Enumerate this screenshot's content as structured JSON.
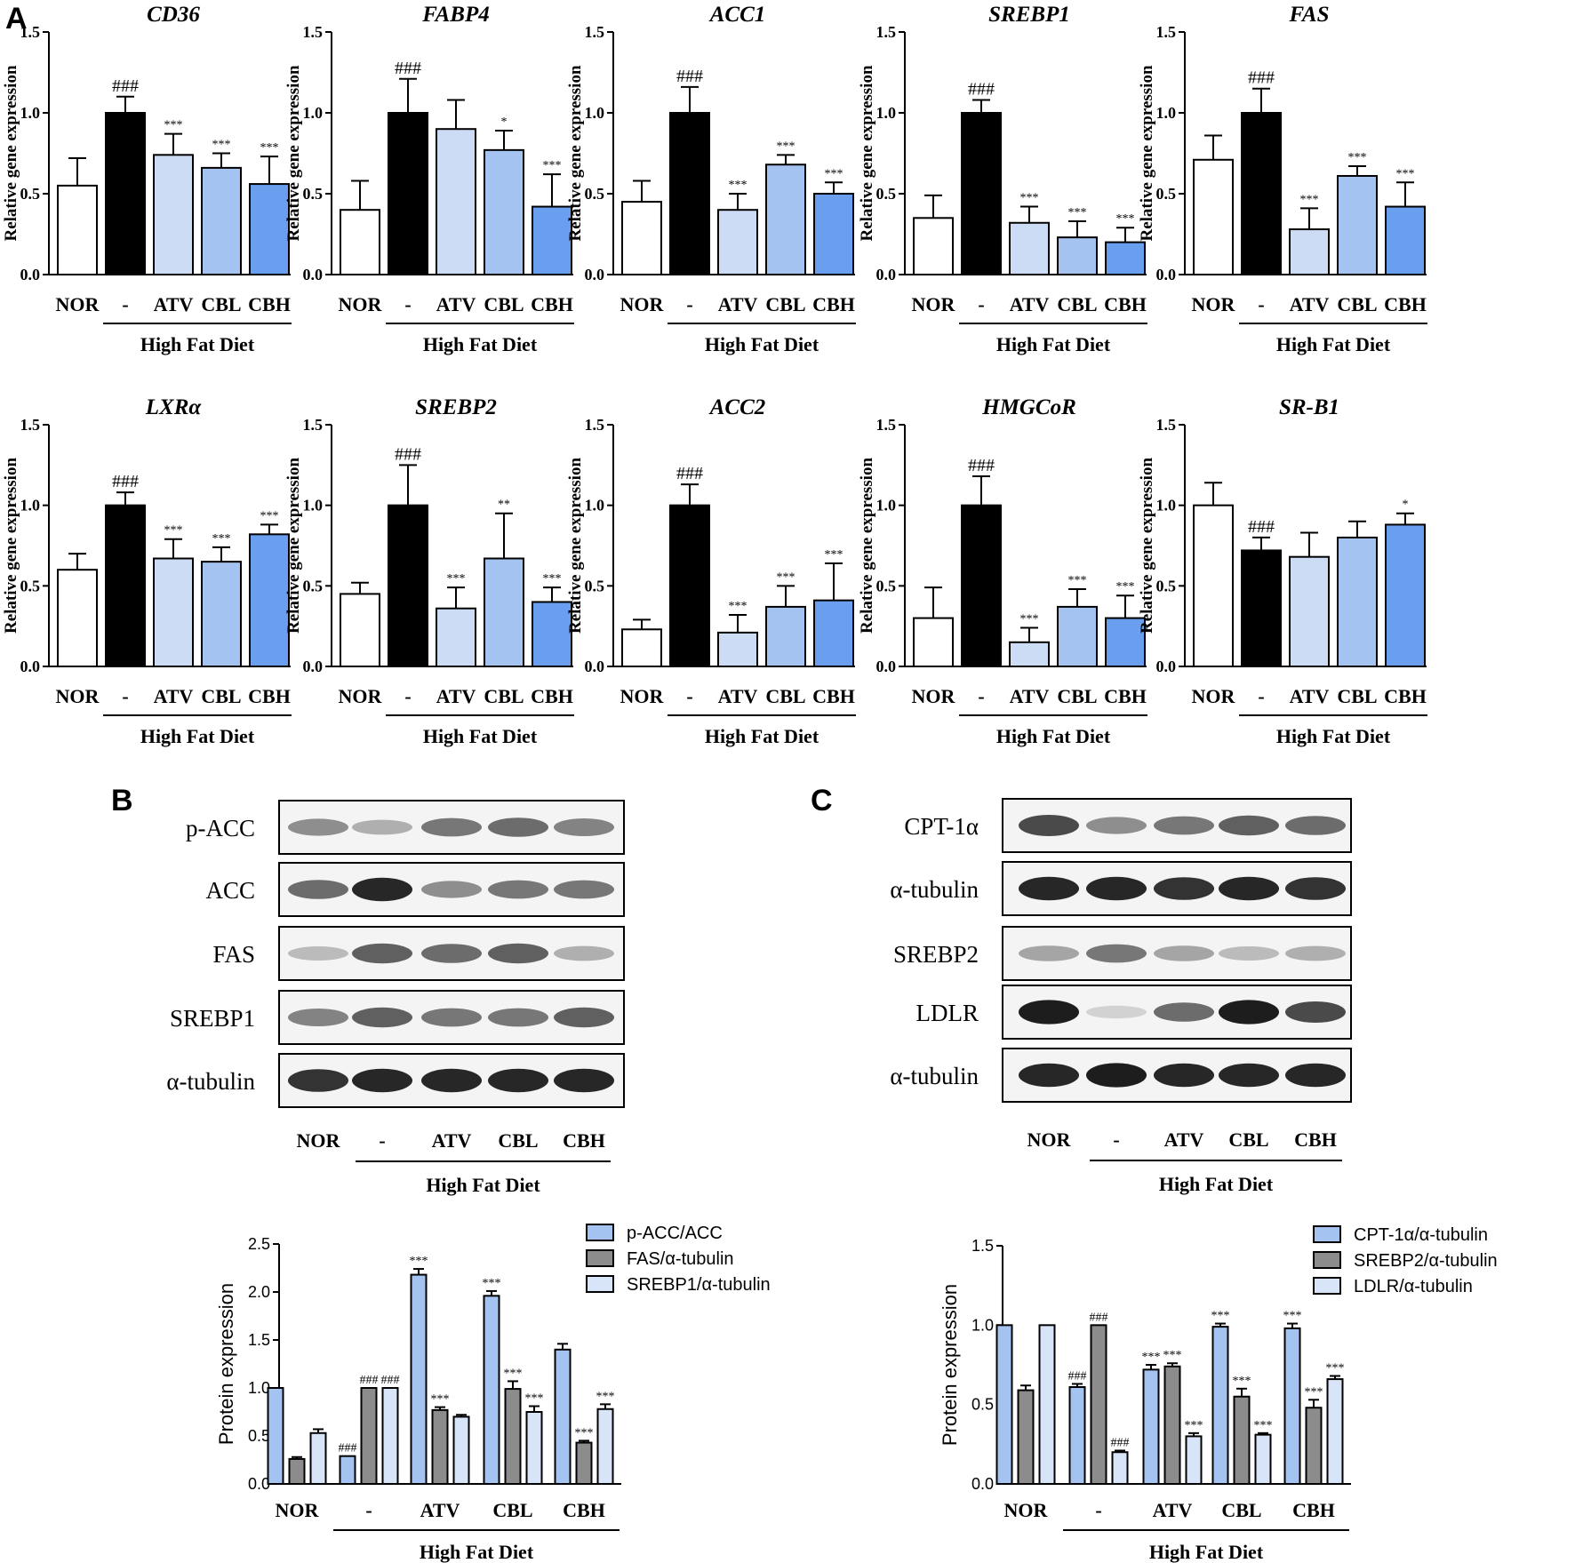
{
  "panels": {
    "a": "A",
    "b": "B",
    "c": "C"
  },
  "colors": {
    "nor": "#ffffff",
    "hfd": "#000000",
    "atv": "#ccdcf5",
    "cbl": "#a5c3f1",
    "cbh": "#6a9ff0",
    "p1": "#a5c3f1",
    "p2": "#8c8c8c",
    "p3": "#d8e5f8"
  },
  "common": {
    "ylabel_gene": "Relative gene expression",
    "ylabel_protein": "Protein expression",
    "hfd": "High Fat Diet",
    "groups": [
      "NOR",
      "-",
      "ATV",
      "CBL",
      "CBH"
    ]
  },
  "chart_data": [
    {
      "type": "bar",
      "title": "CD36",
      "categories": [
        "NOR",
        "-",
        "ATV",
        "CBL",
        "CBH"
      ],
      "values": [
        0.55,
        1.0,
        0.74,
        0.66,
        0.56
      ],
      "errors": [
        0.17,
        0.1,
        0.13,
        0.09,
        0.17
      ],
      "sig": [
        "",
        "###",
        "***",
        "***",
        "***"
      ],
      "ylim": [
        0,
        1.5
      ],
      "ticks": [
        "0.0",
        "0.5",
        "1.0",
        "1.5"
      ],
      "ylabel": "Relative gene expression",
      "xgroup": "High Fat Diet"
    },
    {
      "type": "bar",
      "title": "FABP4",
      "categories": [
        "NOR",
        "-",
        "ATV",
        "CBL",
        "CBH"
      ],
      "values": [
        0.4,
        1.0,
        0.9,
        0.77,
        0.42
      ],
      "errors": [
        0.18,
        0.21,
        0.18,
        0.12,
        0.2
      ],
      "sig": [
        "",
        "###",
        "",
        "*",
        "***"
      ],
      "ylim": [
        0,
        1.5
      ],
      "ticks": [
        "0.0",
        "0.5",
        "1.0",
        "1.5"
      ],
      "ylabel": "Relative gene expression",
      "xgroup": "High Fat Diet"
    },
    {
      "type": "bar",
      "title": "ACC1",
      "categories": [
        "NOR",
        "-",
        "ATV",
        "CBL",
        "CBH"
      ],
      "values": [
        0.45,
        1.0,
        0.4,
        0.68,
        0.5
      ],
      "errors": [
        0.13,
        0.16,
        0.1,
        0.06,
        0.07
      ],
      "sig": [
        "",
        "###",
        "***",
        "***",
        "***"
      ],
      "ylim": [
        0,
        1.5
      ],
      "ticks": [
        "0.0",
        "0.5",
        "1.0",
        "1.5"
      ],
      "ylabel": "Relative gene expression",
      "xgroup": "High Fat Diet"
    },
    {
      "type": "bar",
      "title": "SREBP1",
      "categories": [
        "NOR",
        "-",
        "ATV",
        "CBL",
        "CBH"
      ],
      "values": [
        0.35,
        1.0,
        0.32,
        0.23,
        0.2
      ],
      "errors": [
        0.14,
        0.08,
        0.1,
        0.1,
        0.09
      ],
      "sig": [
        "",
        "###",
        "***",
        "***",
        "***"
      ],
      "ylim": [
        0,
        1.5
      ],
      "ticks": [
        "0.0",
        "0.5",
        "1.0",
        "1.5"
      ],
      "ylabel": "Relative gene expression",
      "xgroup": "High Fat Diet"
    },
    {
      "type": "bar",
      "title": "FAS",
      "categories": [
        "NOR",
        "-",
        "ATV",
        "CBL",
        "CBH"
      ],
      "values": [
        0.71,
        1.0,
        0.28,
        0.61,
        0.42
      ],
      "errors": [
        0.15,
        0.15,
        0.13,
        0.06,
        0.15
      ],
      "sig": [
        "",
        "###",
        "***",
        "***",
        "***"
      ],
      "ylim": [
        0,
        1.5
      ],
      "ticks": [
        "0.0",
        "0.5",
        "1.0",
        "1.5"
      ],
      "ylabel": "Relative gene expression",
      "xgroup": "High Fat Diet"
    },
    {
      "type": "bar",
      "title": "LXRα",
      "categories": [
        "NOR",
        "-",
        "ATV",
        "CBL",
        "CBH"
      ],
      "values": [
        0.6,
        1.0,
        0.67,
        0.65,
        0.82
      ],
      "errors": [
        0.1,
        0.08,
        0.12,
        0.09,
        0.06
      ],
      "sig": [
        "",
        "###",
        "***",
        "***",
        "***"
      ],
      "ylim": [
        0,
        1.5
      ],
      "ticks": [
        "0.0",
        "0.5",
        "1.0",
        "1.5"
      ],
      "ylabel": "Relative gene expression",
      "xgroup": "High Fat Diet"
    },
    {
      "type": "bar",
      "title": "SREBP2",
      "categories": [
        "NOR",
        "-",
        "ATV",
        "CBL",
        "CBH"
      ],
      "values": [
        0.45,
        1.0,
        0.36,
        0.67,
        0.4
      ],
      "errors": [
        0.07,
        0.25,
        0.13,
        0.28,
        0.09
      ],
      "sig": [
        "",
        "###",
        "***",
        "**",
        "***"
      ],
      "ylim": [
        0,
        1.5
      ],
      "ticks": [
        "0.0",
        "0.5",
        "1.0",
        "1.5"
      ],
      "ylabel": "Relative gene expression",
      "xgroup": "High Fat Diet"
    },
    {
      "type": "bar",
      "title": "ACC2",
      "categories": [
        "NOR",
        "-",
        "ATV",
        "CBL",
        "CBH"
      ],
      "values": [
        0.23,
        1.0,
        0.21,
        0.37,
        0.41
      ],
      "errors": [
        0.06,
        0.13,
        0.11,
        0.13,
        0.23
      ],
      "sig": [
        "",
        "###",
        "***",
        "***",
        "***"
      ],
      "ylim": [
        0,
        1.5
      ],
      "ticks": [
        "0.0",
        "0.5",
        "1.0",
        "1.5"
      ],
      "ylabel": "Relative gene expression",
      "xgroup": "High Fat Diet"
    },
    {
      "type": "bar",
      "title": "HMGCoR",
      "categories": [
        "NOR",
        "-",
        "ATV",
        "CBL",
        "CBH"
      ],
      "values": [
        0.3,
        1.0,
        0.15,
        0.37,
        0.3
      ],
      "errors": [
        0.19,
        0.18,
        0.09,
        0.11,
        0.14
      ],
      "sig": [
        "",
        "###",
        "***",
        "***",
        "***"
      ],
      "ylim": [
        0,
        1.5
      ],
      "ticks": [
        "0.0",
        "0.5",
        "1.0",
        "1.5"
      ],
      "ylabel": "Relative gene expression",
      "xgroup": "High Fat Diet"
    },
    {
      "type": "bar",
      "title": "SR-B1",
      "categories": [
        "NOR",
        "-",
        "ATV",
        "CBL",
        "CBH"
      ],
      "values": [
        1.0,
        0.72,
        0.68,
        0.8,
        0.88
      ],
      "errors": [
        0.14,
        0.08,
        0.15,
        0.1,
        0.07
      ],
      "sig": [
        "",
        "###",
        "",
        "",
        "*"
      ],
      "ylim": [
        0,
        1.5
      ],
      "ticks": [
        "0.0",
        "0.5",
        "1.0",
        "1.5"
      ],
      "ylabel": "Relative gene expression",
      "xgroup": "High Fat Diet"
    },
    {
      "type": "bar",
      "title": "",
      "categories": [
        "NOR",
        "-",
        "ATV",
        "CBL",
        "CBH"
      ],
      "series": [
        {
          "name": "p-ACC/ACC",
          "values": [
            1.0,
            0.29,
            2.18,
            1.96,
            1.4
          ],
          "errors": [
            0,
            0,
            0.06,
            0.05,
            0.06
          ],
          "sig": [
            "",
            "###",
            "***",
            "***",
            ""
          ]
        },
        {
          "name": "FAS/α-tubulin",
          "values": [
            0.26,
            1.0,
            0.77,
            0.99,
            0.43
          ],
          "errors": [
            0.02,
            0,
            0.03,
            0.08,
            0.02
          ],
          "sig": [
            "",
            "###",
            "***",
            "***",
            "***"
          ]
        },
        {
          "name": "SREBP1/α-tubulin",
          "values": [
            0.53,
            1.0,
            0.7,
            0.75,
            0.78
          ],
          "errors": [
            0.04,
            0,
            0.02,
            0.06,
            0.05
          ],
          "sig": [
            "",
            "###",
            "",
            "***",
            "***"
          ]
        }
      ],
      "ylim": [
        0,
        2.5
      ],
      "ticks": [
        "0.0",
        "0.5",
        "1.0",
        "1.5",
        "2.0",
        "2.5"
      ],
      "ylabel": "Protein expression",
      "xgroup": "High Fat Diet"
    },
    {
      "type": "bar",
      "title": "",
      "categories": [
        "NOR",
        "-",
        "ATV",
        "CBL",
        "CBH"
      ],
      "series": [
        {
          "name": "CPT-1α/α-tubulin",
          "values": [
            1.0,
            0.61,
            0.72,
            0.99,
            0.98
          ],
          "errors": [
            0,
            0.02,
            0.03,
            0.02,
            0.03
          ],
          "sig": [
            "",
            "###",
            "***",
            "***",
            "***"
          ]
        },
        {
          "name": "SREBP2/α-tubulin",
          "values": [
            0.59,
            1.0,
            0.74,
            0.55,
            0.48
          ],
          "errors": [
            0.03,
            0,
            0.02,
            0.05,
            0.05
          ],
          "sig": [
            "",
            "###",
            "***",
            "***",
            "***"
          ]
        },
        {
          "name": "LDLR/α-tubulin",
          "values": [
            1.0,
            0.2,
            0.3,
            0.31,
            0.66
          ],
          "errors": [
            0,
            0.01,
            0.02,
            0.01,
            0.02
          ],
          "sig": [
            "",
            "###",
            "***",
            "***",
            "***"
          ]
        }
      ],
      "ylim": [
        0,
        1.5
      ],
      "ticks": [
        "0.0",
        "0.5",
        "1.0",
        "1.5"
      ],
      "ylabel": "Protein expression",
      "xgroup": "High Fat Diet"
    }
  ],
  "blots": {
    "b": {
      "labels": [
        "p-ACC",
        "ACC",
        "FAS",
        "SREBP1",
        "α-tubulin"
      ],
      "lanes": [
        "NOR",
        "-",
        "ATV",
        "CBL",
        "CBH"
      ],
      "xgroup": "High Fat Diet",
      "intensity": [
        [
          0.45,
          0.3,
          0.55,
          0.6,
          0.5
        ],
        [
          0.6,
          0.9,
          0.45,
          0.55,
          0.55
        ],
        [
          0.25,
          0.65,
          0.6,
          0.65,
          0.3
        ],
        [
          0.5,
          0.65,
          0.55,
          0.55,
          0.65
        ],
        [
          0.85,
          0.9,
          0.9,
          0.9,
          0.9
        ]
      ]
    },
    "c": {
      "labels": [
        "CPT-1α",
        "α-tubulin",
        "SREBP2",
        "LDLR",
        "α-tubulin"
      ],
      "lanes": [
        "NOR",
        "-",
        "ATV",
        "CBL",
        "CBH"
      ],
      "xgroup": "High Fat Diet",
      "intensity": [
        [
          0.75,
          0.45,
          0.55,
          0.65,
          0.6
        ],
        [
          0.9,
          0.9,
          0.85,
          0.9,
          0.85
        ],
        [
          0.35,
          0.55,
          0.35,
          0.25,
          0.3
        ],
        [
          0.95,
          0.15,
          0.6,
          0.95,
          0.75
        ],
        [
          0.9,
          0.95,
          0.9,
          0.9,
          0.9
        ]
      ]
    }
  }
}
